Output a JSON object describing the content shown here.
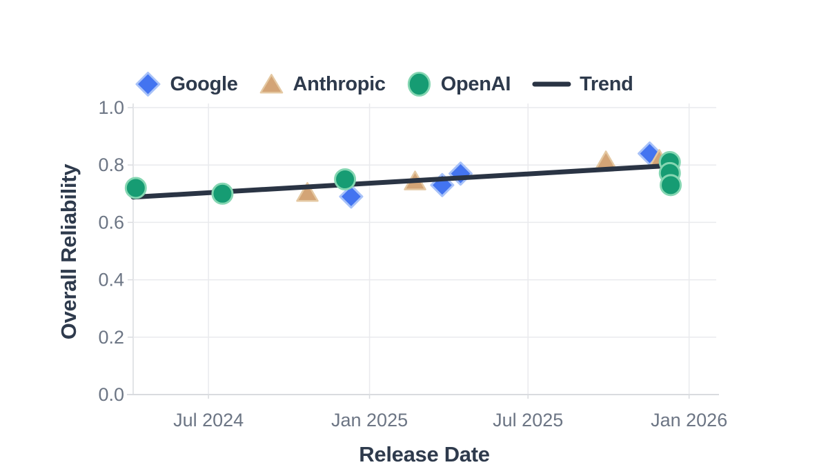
{
  "figure": {
    "background": "#FFFFFF",
    "x_title": "Release Date",
    "y_title": "Overall Reliability",
    "legend": {
      "position": "top-center",
      "items": [
        {
          "label": "Google",
          "marker": "diamond-icon",
          "fill": "#4374F0",
          "stroke": "#A8C2F8"
        },
        {
          "label": "Anthropic",
          "marker": "triangle-icon",
          "fill": "#D3A476",
          "stroke": "#E4C8A2"
        },
        {
          "label": "OpenAI",
          "marker": "circle-icon",
          "fill": "#169C73",
          "stroke": "#85D6B2"
        },
        {
          "label": "Trend",
          "marker": "line-icon",
          "fill": "#2A3444",
          "stroke": "#2A3444"
        }
      ]
    }
  },
  "chart_data": {
    "type": "scatter",
    "title": "",
    "xlabel": "Release Date",
    "ylabel": "Overall Reliability",
    "grid": true,
    "legend_position": "top-center",
    "x_axis": {
      "type": "date",
      "range": [
        "2024-04-06",
        "2026-02-01"
      ],
      "ticks": [
        {
          "label": "Jul 2024",
          "date": "2024-07-01"
        },
        {
          "label": "Jan 2025",
          "date": "2025-01-01"
        },
        {
          "label": "Jul 2025",
          "date": "2025-07-01"
        },
        {
          "label": "Jan 2026",
          "date": "2026-01-01"
        }
      ]
    },
    "y_axis": {
      "range": [
        0,
        1.015
      ],
      "ticks": [
        {
          "label": "0.0",
          "value": 0.0
        },
        {
          "label": "0.2",
          "value": 0.2
        },
        {
          "label": "0.4",
          "value": 0.4
        },
        {
          "label": "0.6",
          "value": 0.6
        },
        {
          "label": "0.8",
          "value": 0.8
        },
        {
          "label": "1.0",
          "value": 1.0
        }
      ]
    },
    "series": [
      {
        "name": "Google",
        "marker": "diamond",
        "fill": "#4374F0",
        "stroke": "#A8C2F8",
        "points": [
          [
            "2024-12-11",
            0.69
          ],
          [
            "2025-03-25",
            0.73
          ],
          [
            "2025-04-15",
            0.77
          ],
          [
            "2025-11-17",
            0.84
          ]
        ]
      },
      {
        "name": "Anthropic",
        "marker": "triangle",
        "fill": "#D3A476",
        "stroke": "#E4C8A2",
        "points": [
          [
            "2024-10-22",
            0.705
          ],
          [
            "2025-02-22",
            0.745
          ],
          [
            "2025-09-28",
            0.815
          ],
          [
            "2025-11-28",
            0.82
          ]
        ]
      },
      {
        "name": "OpenAI",
        "marker": "circle",
        "fill": "#169C73",
        "stroke": "#85D6B2",
        "points": [
          [
            "2024-04-09",
            0.72
          ],
          [
            "2024-07-17",
            0.7
          ],
          [
            "2024-12-04",
            0.75
          ],
          [
            "2025-12-10",
            0.81
          ],
          [
            "2025-12-10",
            0.772
          ],
          [
            "2025-12-11",
            0.73
          ]
        ]
      }
    ],
    "trendline": {
      "name": "Trend",
      "color": "#2A3444",
      "points": [
        [
          "2024-04-06",
          0.688
        ],
        [
          "2025-12-16",
          0.799
        ]
      ]
    },
    "style": {
      "gridline_color": "#E9EAED",
      "axisline_color": "#D9DBDF",
      "tick_text_color": "#6C7584"
    }
  }
}
